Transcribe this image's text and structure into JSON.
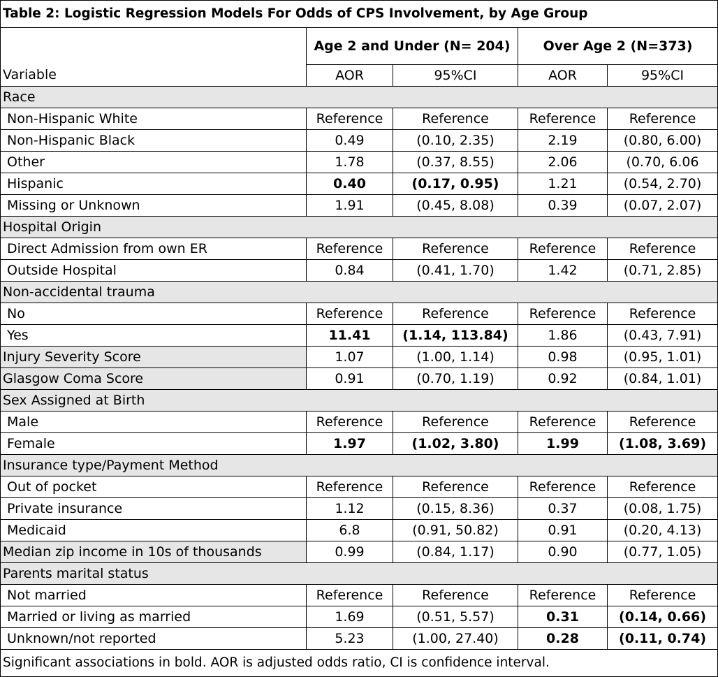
{
  "title": "Table 2: Logistic Regression Models For Odds of CPS Involvement, by Age Group",
  "group_headers": [
    "Age 2 and Under (N= 204)",
    "Over Age 2 (N=373)"
  ],
  "col_headers": [
    "Variable",
    "AOR",
    "95%CI",
    "AOR",
    "95%CI"
  ],
  "rows": [
    {
      "type": "section",
      "label": "Race"
    },
    {
      "type": "data",
      "label": "Non-Hispanic White",
      "indent": true,
      "values": [
        "Reference",
        "Reference",
        "Reference",
        "Reference"
      ],
      "bold": [
        false,
        false,
        false,
        false
      ]
    },
    {
      "type": "data",
      "label": "Non-Hispanic Black",
      "indent": true,
      "values": [
        "0.49",
        "(0.10, 2.35)",
        "2.19",
        "(0.80, 6.00)"
      ],
      "bold": [
        false,
        false,
        false,
        false
      ]
    },
    {
      "type": "data",
      "label": "Other",
      "indent": true,
      "values": [
        "1.78",
        "(0.37, 8.55)",
        "2.06",
        "(0.70, 6.06"
      ],
      "bold": [
        false,
        false,
        false,
        false
      ]
    },
    {
      "type": "data",
      "label": "Hispanic",
      "indent": true,
      "values": [
        "0.40",
        "(0.17, 0.95)",
        "1.21",
        "(0.54, 2.70)"
      ],
      "bold": [
        true,
        true,
        false,
        false
      ]
    },
    {
      "type": "data",
      "label": "Missing or Unknown",
      "indent": true,
      "values": [
        "1.91",
        "(0.45, 8.08)",
        "0.39",
        "(0.07, 2.07)"
      ],
      "bold": [
        false,
        false,
        false,
        false
      ]
    },
    {
      "type": "section",
      "label": "Hospital Origin"
    },
    {
      "type": "data",
      "label": "Direct Admission from own ER",
      "indent": true,
      "values": [
        "Reference",
        "Reference",
        "Reference",
        "Reference"
      ],
      "bold": [
        false,
        false,
        false,
        false
      ]
    },
    {
      "type": "data",
      "label": "Outside Hospital",
      "indent": true,
      "values": [
        "0.84",
        "(0.41, 1.70)",
        "1.42",
        "(0.71, 2.85)"
      ],
      "bold": [
        false,
        false,
        false,
        false
      ]
    },
    {
      "type": "section",
      "label": "Non-accidental trauma"
    },
    {
      "type": "data",
      "label": "No",
      "indent": true,
      "values": [
        "Reference",
        "Reference",
        "Reference",
        "Reference"
      ],
      "bold": [
        false,
        false,
        false,
        false
      ]
    },
    {
      "type": "data",
      "label": "Yes",
      "indent": true,
      "values": [
        "11.41",
        "(1.14, 113.84)",
        "1.86",
        "(0.43, 7.91)"
      ],
      "bold": [
        true,
        true,
        false,
        false
      ]
    },
    {
      "type": "data",
      "label": "Injury Severity Score",
      "indent": false,
      "gray": true,
      "values": [
        "1.07",
        "(1.00, 1.14)",
        "0.98",
        "(0.95, 1.01)"
      ],
      "bold": [
        false,
        false,
        false,
        false
      ]
    },
    {
      "type": "data",
      "label": "Glasgow Coma Score",
      "indent": false,
      "gray": true,
      "values": [
        "0.91",
        "(0.70, 1.19)",
        "0.92",
        "(0.84, 1.01)"
      ],
      "bold": [
        false,
        false,
        false,
        false
      ]
    },
    {
      "type": "section",
      "label": "Sex Assigned at Birth"
    },
    {
      "type": "data",
      "label": "Male",
      "indent": true,
      "values": [
        "Reference",
        "Reference",
        "Reference",
        "Reference"
      ],
      "bold": [
        false,
        false,
        false,
        false
      ]
    },
    {
      "type": "data",
      "label": "Female",
      "indent": true,
      "values": [
        "1.97",
        "(1.02, 3.80)",
        "1.99",
        "(1.08, 3.69)"
      ],
      "bold": [
        true,
        true,
        true,
        true
      ]
    },
    {
      "type": "section",
      "label": "Insurance type/Payment Method"
    },
    {
      "type": "data",
      "label": "Out of pocket",
      "indent": true,
      "values": [
        "Reference",
        "Reference",
        "Reference",
        "Reference"
      ],
      "bold": [
        false,
        false,
        false,
        false
      ]
    },
    {
      "type": "data",
      "label": "Private insurance",
      "indent": true,
      "values": [
        "1.12",
        "(0.15, 8.36)",
        "0.37",
        "(0.08, 1.75)"
      ],
      "bold": [
        false,
        false,
        false,
        false
      ]
    },
    {
      "type": "data",
      "label": "Medicaid",
      "indent": true,
      "values": [
        "6.8",
        "(0.91, 50.82)",
        "0.91",
        "(0.20, 4.13)"
      ],
      "bold": [
        false,
        false,
        false,
        false
      ]
    },
    {
      "type": "data",
      "label": "Median zip income in 10s of thousands",
      "indent": false,
      "gray": true,
      "values": [
        "0.99",
        "(0.84, 1.17)",
        "0.90",
        "(0.77, 1.05)"
      ],
      "bold": [
        false,
        false,
        false,
        false
      ]
    },
    {
      "type": "section",
      "label": "Parents marital status"
    },
    {
      "type": "data",
      "label": "Not married",
      "indent": true,
      "values": [
        "Reference",
        "Reference",
        "Reference",
        "Reference"
      ],
      "bold": [
        false,
        false,
        false,
        false
      ]
    },
    {
      "type": "data",
      "label": "Married or living as married",
      "indent": true,
      "values": [
        "1.69",
        "(0.51, 5.57)",
        "0.31",
        "(0.14, 0.66)"
      ],
      "bold": [
        false,
        false,
        true,
        true
      ]
    },
    {
      "type": "data",
      "label": "Unknown/not reported",
      "indent": true,
      "values": [
        "5.23",
        "(1.00, 27.40)",
        "0.28",
        "(0.11, 0.74)"
      ],
      "bold": [
        false,
        false,
        true,
        true
      ]
    }
  ],
  "footnote": "Significant associations in bold. AOR is adjusted odds ratio, CI is confidence interval."
}
